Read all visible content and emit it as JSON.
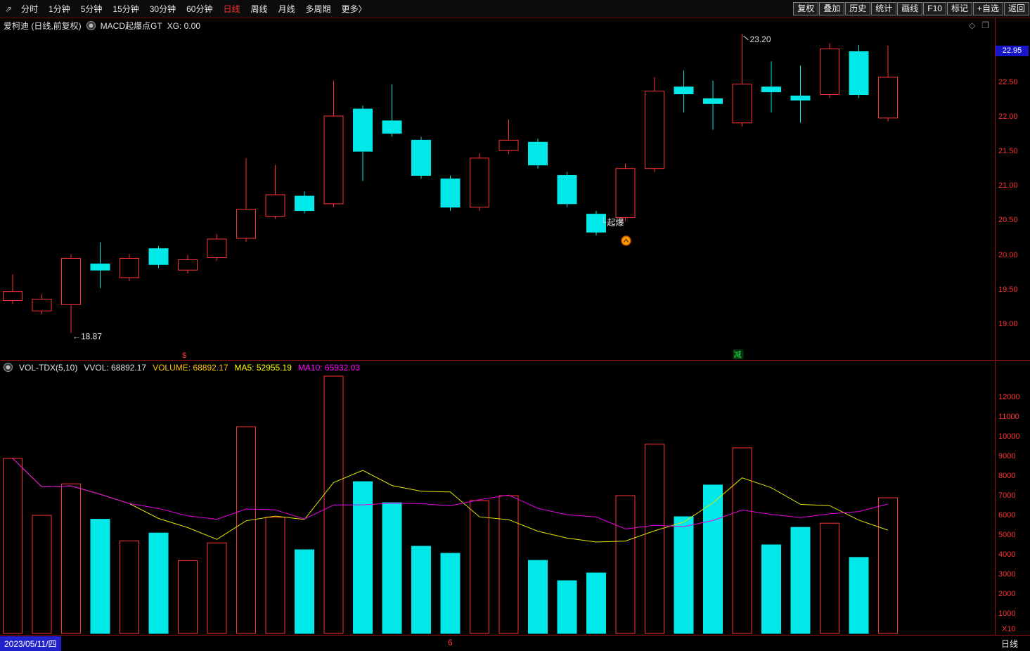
{
  "toolbar": {
    "app_icon": "⇗",
    "periods": [
      {
        "label": "分时",
        "active": false
      },
      {
        "label": "1分钟",
        "active": false
      },
      {
        "label": "5分钟",
        "active": false
      },
      {
        "label": "15分钟",
        "active": false
      },
      {
        "label": "30分钟",
        "active": false
      },
      {
        "label": "60分钟",
        "active": false
      },
      {
        "label": "日线",
        "active": true
      },
      {
        "label": "周线",
        "active": false
      },
      {
        "label": "月线",
        "active": false
      },
      {
        "label": "多周期",
        "active": false
      },
      {
        "label": "更多〉",
        "active": false
      }
    ],
    "right_buttons": [
      "复权",
      "叠加",
      "历史",
      "统计",
      "画线",
      "F10",
      "标记",
      "+自选",
      "返回"
    ]
  },
  "chart_header": {
    "title": "爱柯迪 (日线,前复权)",
    "indicator_name": "MACD起爆点GT",
    "indicator_value": "XG: 0.00",
    "icons": [
      {
        "name": "diamond-icon",
        "glyph": "◇"
      },
      {
        "name": "window-icon",
        "glyph": "❐"
      }
    ]
  },
  "price_axis": {
    "current": "22.95",
    "labels": [
      "22.50",
      "22.00",
      "21.50",
      "21.00",
      "20.50",
      "20.00",
      "19.50",
      "19.00"
    ]
  },
  "vol_header": {
    "name": "VOL-TDX(5,10)",
    "vvol": "VVOL: 68892.17",
    "volume": "VOLUME: 68892.17",
    "ma5": "MA5: 52955.19",
    "ma10": "MA10: 65932.03"
  },
  "vol_axis": {
    "labels": [
      "12000",
      "11000",
      "10000",
      "9000",
      "8000",
      "7000",
      "6000",
      "5000",
      "4000",
      "3000",
      "2000",
      "1000"
    ],
    "unit": "X10"
  },
  "bottom_bar": {
    "date": "2023/05/11/四",
    "page_marker": "6",
    "period": "日线"
  },
  "chart_data": {
    "type": "candlestick+volume",
    "title": "爱柯迪 日线 前复权 K线与成交量",
    "price_range": [
      18.48,
      23.21
    ],
    "volume_range": [
      0,
      13214
    ],
    "up_color": "#ff3232",
    "down_color": "#00e8e8",
    "ma5_color": "#e6e600",
    "ma10_color": "#e600e6",
    "candles": [
      {
        "o": 19.34,
        "h": 19.72,
        "l": 19.29,
        "c": 19.47,
        "v": 8890
      },
      {
        "o": 19.19,
        "h": 19.43,
        "l": 19.14,
        "c": 19.36,
        "v": 6000
      },
      {
        "o": 19.28,
        "h": 20.01,
        "l": 18.87,
        "c": 19.95,
        "v": 7600
      },
      {
        "o": 19.87,
        "h": 20.18,
        "l": 19.52,
        "c": 19.78,
        "v": 5800
      },
      {
        "o": 19.67,
        "h": 20.01,
        "l": 19.62,
        "c": 19.95,
        "v": 4700
      },
      {
        "o": 20.09,
        "h": 20.13,
        "l": 19.81,
        "c": 19.86,
        "v": 5100
      },
      {
        "o": 19.78,
        "h": 20.0,
        "l": 19.73,
        "c": 19.93,
        "v": 3700
      },
      {
        "o": 19.96,
        "h": 20.3,
        "l": 19.92,
        "c": 20.23,
        "v": 4600
      },
      {
        "o": 20.24,
        "h": 21.4,
        "l": 20.19,
        "c": 20.66,
        "v": 10500
      },
      {
        "o": 20.56,
        "h": 21.3,
        "l": 20.52,
        "c": 20.87,
        "v": 5900
      },
      {
        "o": 20.85,
        "h": 20.92,
        "l": 20.6,
        "c": 20.64,
        "v": 4250
      },
      {
        "o": 20.74,
        "h": 22.52,
        "l": 20.69,
        "c": 22.01,
        "v": 13070
      },
      {
        "o": 22.11,
        "h": 22.16,
        "l": 21.07,
        "c": 21.5,
        "v": 7710
      },
      {
        "o": 21.94,
        "h": 22.47,
        "l": 21.71,
        "c": 21.76,
        "v": 6640
      },
      {
        "o": 21.66,
        "h": 21.71,
        "l": 21.1,
        "c": 21.15,
        "v": 4430
      },
      {
        "o": 21.1,
        "h": 21.15,
        "l": 20.64,
        "c": 20.69,
        "v": 4070
      },
      {
        "o": 20.69,
        "h": 21.47,
        "l": 20.64,
        "c": 21.4,
        "v": 6750
      },
      {
        "o": 21.51,
        "h": 21.96,
        "l": 21.46,
        "c": 21.66,
        "v": 7000
      },
      {
        "o": 21.63,
        "h": 21.68,
        "l": 21.25,
        "c": 21.3,
        "v": 3710
      },
      {
        "o": 21.15,
        "h": 21.2,
        "l": 20.69,
        "c": 20.74,
        "v": 2680
      },
      {
        "o": 20.59,
        "h": 20.64,
        "l": 20.28,
        "c": 20.33,
        "v": 3070
      },
      {
        "o": 20.54,
        "h": 21.32,
        "l": 20.49,
        "c": 21.25,
        "v": 7000
      },
      {
        "o": 21.25,
        "h": 22.57,
        "l": 21.2,
        "c": 22.37,
        "v": 9610
      },
      {
        "o": 22.43,
        "h": 22.67,
        "l": 22.06,
        "c": 22.33,
        "v": 5930
      },
      {
        "o": 22.26,
        "h": 22.52,
        "l": 21.81,
        "c": 22.19,
        "v": 7540
      },
      {
        "o": 21.91,
        "h": 23.2,
        "l": 21.86,
        "c": 22.47,
        "v": 9430
      },
      {
        "o": 22.43,
        "h": 22.8,
        "l": 22.06,
        "c": 22.36,
        "v": 4500
      },
      {
        "o": 22.3,
        "h": 22.74,
        "l": 21.91,
        "c": 22.24,
        "v": 5390
      },
      {
        "o": 22.32,
        "h": 23.06,
        "l": 22.27,
        "c": 22.98,
        "v": 5600
      },
      {
        "o": 22.94,
        "h": 23.04,
        "l": 22.27,
        "c": 22.32,
        "v": 3860
      },
      {
        "o": 21.98,
        "h": 23.03,
        "l": 21.93,
        "c": 22.57,
        "v": 6889
      }
    ],
    "high_annotation": {
      "index": 25,
      "price": 23.2,
      "label": "23.20"
    },
    "low_annotation": {
      "index": 2,
      "price": 18.87,
      "arrow": "←",
      "label": "18.87"
    },
    "signal_annotation": {
      "index": 21,
      "label": "起爆",
      "icon_color": "#ffa000",
      "icon_ring": "#c05000"
    },
    "marks": [
      {
        "index": 6,
        "glyph": "$",
        "color": "#ff3434",
        "boxed": false
      },
      {
        "index": 25,
        "glyph": "减",
        "color": "#22dd55",
        "boxed": true,
        "box_color": "#0a320a"
      }
    ]
  }
}
